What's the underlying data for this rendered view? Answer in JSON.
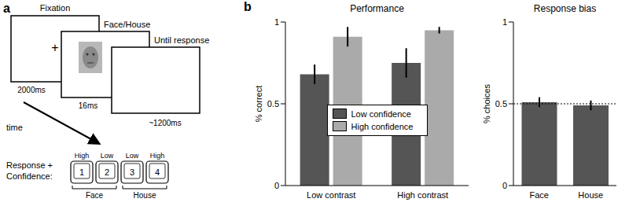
{
  "panel_a": {
    "label": "a",
    "screens": [
      {
        "title": "Fixation",
        "content": "+",
        "duration": "2000ms"
      },
      {
        "title": "Face/House",
        "duration": "16ms"
      },
      {
        "title": "Until response",
        "duration": "~1200ms"
      }
    ],
    "time_label": "time",
    "response_label": [
      "Response +",
      "Confidence:"
    ],
    "keys": [
      {
        "key": "1",
        "confidence": "High"
      },
      {
        "key": "2",
        "confidence": "Low"
      },
      {
        "key": "3",
        "confidence": "Low"
      },
      {
        "key": "4",
        "confidence": "High"
      }
    ],
    "choices": [
      "Face",
      "House"
    ]
  },
  "panel_b": {
    "label": "b"
  },
  "chart_data": [
    {
      "type": "bar",
      "title": "Performance",
      "ylabel": "% correct",
      "categories": [
        "Low contrast",
        "High contrast"
      ],
      "series": [
        {
          "name": "Low confidence",
          "color": "#555555",
          "values": [
            0.68,
            0.75
          ],
          "errors": [
            0.06,
            0.09
          ]
        },
        {
          "name": "High confidence",
          "color": "#aaaaaa",
          "values": [
            0.91,
            0.95
          ],
          "errors": [
            0.06,
            0.02
          ]
        }
      ],
      "ylim": [
        0,
        1
      ],
      "yticks": [
        0,
        0.5,
        1
      ],
      "legend": "center"
    },
    {
      "type": "bar",
      "title": "Response bias",
      "ylabel": "% choices",
      "categories": [
        "Face",
        "House"
      ],
      "series": [
        {
          "color": "#555555",
          "values": [
            0.51,
            0.49
          ],
          "errors": [
            0.03,
            0.03
          ]
        }
      ],
      "ylim": [
        0,
        1
      ],
      "yticks": [
        0,
        0.5,
        1
      ],
      "reference_line": 0.5
    }
  ]
}
